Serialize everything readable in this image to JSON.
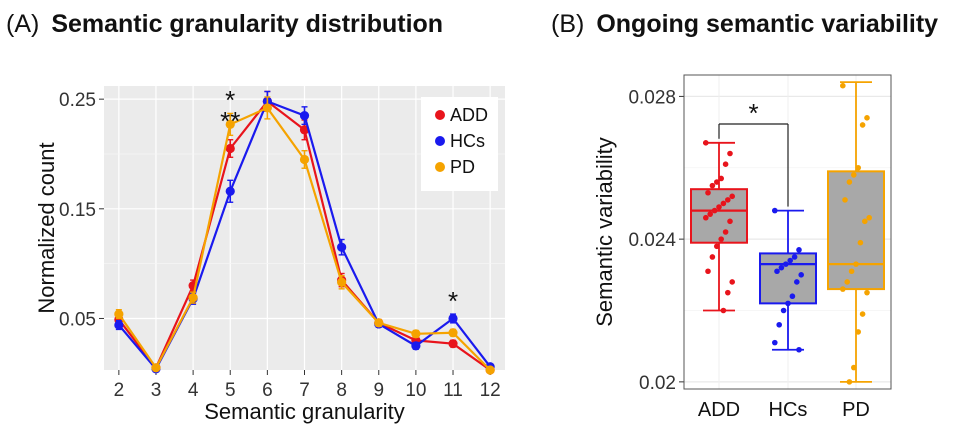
{
  "panels": {
    "a": {
      "tag": "(A)",
      "title": "Semantic granularity distribution"
    },
    "b": {
      "tag": "(B)",
      "title": "Ongoing semantic variability"
    }
  },
  "chart_data": [
    {
      "type": "line",
      "title": "Semantic granularity distribution",
      "xlabel": "Semantic granularity",
      "ylabel": "Normalized count",
      "x": [
        2,
        3,
        4,
        5,
        6,
        7,
        8,
        9,
        10,
        11,
        12
      ],
      "xlim": [
        1.6,
        12.4
      ],
      "ylim": [
        0.003,
        0.262
      ],
      "yticks": [
        0.05,
        0.15,
        0.25
      ],
      "ytick_labels": [
        "0.05",
        "0.15",
        "0.25"
      ],
      "grid": true,
      "legend": "top-right",
      "series": [
        {
          "name": "ADD",
          "color": "#e8141c",
          "values": [
            0.049,
            0.005,
            0.08,
            0.205,
            0.248,
            0.222,
            0.085,
            0.046,
            0.03,
            0.027,
            0.003
          ],
          "errors": [
            0.004,
            0.001,
            0.005,
            0.008,
            0.009,
            0.009,
            0.006,
            0.003,
            0.003,
            0.003,
            0.001
          ]
        },
        {
          "name": "HCs",
          "color": "#1a1aee",
          "values": [
            0.044,
            0.004,
            0.068,
            0.166,
            0.248,
            0.235,
            0.115,
            0.045,
            0.025,
            0.05,
            0.006
          ],
          "errors": [
            0.004,
            0.001,
            0.005,
            0.01,
            0.009,
            0.008,
            0.007,
            0.003,
            0.003,
            0.004,
            0.001
          ]
        },
        {
          "name": "PD",
          "color": "#f5a300",
          "values": [
            0.054,
            0.005,
            0.069,
            0.227,
            0.242,
            0.195,
            0.083,
            0.046,
            0.036,
            0.037,
            0.003
          ],
          "errors": [
            0.004,
            0.001,
            0.005,
            0.01,
            0.01,
            0.008,
            0.006,
            0.003,
            0.003,
            0.003,
            0.001
          ]
        }
      ],
      "annotations": [
        {
          "x": 5,
          "text": "*"
        },
        {
          "x": 5,
          "text": "**"
        },
        {
          "x": 11,
          "text": "*"
        }
      ]
    },
    {
      "type": "box",
      "title": "Ongoing semantic variability",
      "ylabel": "Semantic variability",
      "categories": [
        "ADD",
        "HCs",
        "PD"
      ],
      "ylim": [
        0.0198,
        0.0286
      ],
      "yticks": [
        0.02,
        0.024,
        0.028
      ],
      "ytick_labels": [
        "0.02",
        "0.024",
        "0.028"
      ],
      "grid": true,
      "boxes": [
        {
          "name": "ADD",
          "color": "#e8141c",
          "min": 0.022,
          "q1": 0.0239,
          "median": 0.0248,
          "q3": 0.0254,
          "max": 0.0267,
          "points": [
            0.0267,
            0.0264,
            0.0261,
            0.0257,
            0.0256,
            0.0255,
            0.0253,
            0.0252,
            0.0251,
            0.025,
            0.0249,
            0.0248,
            0.0247,
            0.0246,
            0.0245,
            0.0242,
            0.024,
            0.0238,
            0.0235,
            0.0231,
            0.0228,
            0.0225,
            0.022
          ]
        },
        {
          "name": "HCs",
          "color": "#1a1aee",
          "min": 0.0209,
          "q1": 0.0222,
          "median": 0.0233,
          "q3": 0.0236,
          "max": 0.0248,
          "points": [
            0.0248,
            0.0237,
            0.0235,
            0.0234,
            0.0233,
            0.0232,
            0.0231,
            0.023,
            0.0228,
            0.0224,
            0.0222,
            0.022,
            0.0216,
            0.0211,
            0.0209
          ]
        },
        {
          "name": "PD",
          "color": "#f5a300",
          "min": 0.02,
          "q1": 0.0226,
          "median": 0.0233,
          "q3": 0.0259,
          "max": 0.0284,
          "points": [
            0.0283,
            0.0274,
            0.0272,
            0.026,
            0.0258,
            0.0256,
            0.0251,
            0.0246,
            0.0245,
            0.0239,
            0.0233,
            0.0231,
            0.0228,
            0.0226,
            0.0225,
            0.0219,
            0.0214,
            0.0204,
            0.02
          ]
        }
      ],
      "annotations": [
        {
          "between": [
            "ADD",
            "HCs"
          ],
          "text": "*"
        }
      ]
    }
  ]
}
